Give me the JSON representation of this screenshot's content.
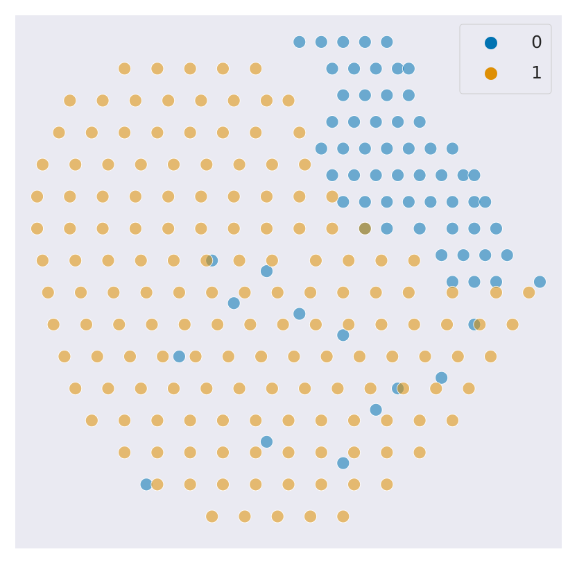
{
  "chart_data": {
    "type": "scatter",
    "xlim": [
      0,
      100
    ],
    "ylim": [
      0,
      100
    ],
    "legend": "upper right",
    "series": [
      {
        "name": "0",
        "color": "#0173b2",
        "x": [
          52,
          56,
          60,
          64,
          68,
          58,
          62,
          66,
          70,
          72,
          60,
          64,
          68,
          72,
          58,
          62,
          66,
          70,
          74,
          56,
          60,
          64,
          68,
          72,
          76,
          80,
          58,
          62,
          66,
          70,
          74,
          78,
          82,
          84,
          60,
          64,
          68,
          72,
          76,
          80,
          84,
          86,
          64,
          68,
          74,
          80,
          84,
          88,
          78,
          82,
          86,
          90,
          80,
          84,
          88,
          96,
          46,
          36,
          52,
          60,
          70,
          78,
          66,
          46,
          30,
          24,
          84,
          60,
          40
        ],
        "values": [
          95,
          95,
          95,
          95,
          95,
          90,
          90,
          90,
          90,
          90,
          85,
          85,
          85,
          85,
          80,
          80,
          80,
          80,
          80,
          75,
          75,
          75,
          75,
          75,
          75,
          75,
          70,
          70,
          70,
          70,
          70,
          70,
          70,
          70,
          65,
          65,
          65,
          65,
          65,
          65,
          65,
          65,
          60,
          60,
          60,
          60,
          60,
          60,
          55,
          55,
          55,
          55,
          50,
          50,
          50,
          50,
          52,
          54,
          44,
          40,
          30,
          32,
          26,
          20,
          36,
          12,
          42,
          16,
          46
        ]
      },
      {
        "name": "1",
        "color": "#de8f05",
        "x": [
          20,
          26,
          32,
          38,
          44,
          10,
          16,
          22,
          28,
          34,
          40,
          46,
          50,
          8,
          14,
          20,
          26,
          32,
          38,
          44,
          52,
          5,
          11,
          17,
          23,
          29,
          35,
          41,
          47,
          53,
          4,
          10,
          16,
          22,
          28,
          34,
          40,
          46,
          52,
          58,
          4,
          10,
          16,
          22,
          28,
          34,
          40,
          46,
          52,
          58,
          64,
          5,
          11,
          17,
          23,
          29,
          35,
          41,
          47,
          55,
          61,
          67,
          73,
          6,
          12,
          18,
          24,
          30,
          36,
          42,
          48,
          54,
          60,
          66,
          72,
          80,
          88,
          94,
          7,
          13,
          19,
          25,
          31,
          37,
          43,
          49,
          55,
          61,
          67,
          73,
          79,
          85,
          91,
          9,
          15,
          21,
          27,
          33,
          39,
          45,
          51,
          57,
          63,
          69,
          75,
          81,
          87,
          11,
          17,
          23,
          29,
          35,
          41,
          47,
          53,
          59,
          65,
          71,
          77,
          83,
          14,
          20,
          26,
          32,
          38,
          44,
          50,
          56,
          62,
          68,
          74,
          80,
          20,
          26,
          32,
          38,
          44,
          50,
          56,
          62,
          68,
          74,
          26,
          32,
          38,
          44,
          50,
          56,
          62,
          68,
          36,
          42,
          48,
          54,
          60
        ],
        "values": [
          90,
          90,
          90,
          90,
          90,
          84,
          84,
          84,
          84,
          84,
          84,
          84,
          84,
          78,
          78,
          78,
          78,
          78,
          78,
          78,
          78,
          72,
          72,
          72,
          72,
          72,
          72,
          72,
          72,
          72,
          66,
          66,
          66,
          66,
          66,
          66,
          66,
          66,
          66,
          66,
          60,
          60,
          60,
          60,
          60,
          60,
          60,
          60,
          60,
          60,
          60,
          54,
          54,
          54,
          54,
          54,
          54,
          54,
          54,
          54,
          54,
          54,
          54,
          48,
          48,
          48,
          48,
          48,
          48,
          48,
          48,
          48,
          48,
          48,
          48,
          48,
          48,
          48,
          42,
          42,
          42,
          42,
          42,
          42,
          42,
          42,
          42,
          42,
          42,
          42,
          42,
          42,
          42,
          36,
          36,
          36,
          36,
          36,
          36,
          36,
          36,
          36,
          36,
          36,
          36,
          36,
          36,
          30,
          30,
          30,
          30,
          30,
          30,
          30,
          30,
          30,
          30,
          30,
          30,
          30,
          24,
          24,
          24,
          24,
          24,
          24,
          24,
          24,
          24,
          24,
          24,
          24,
          18,
          18,
          18,
          18,
          18,
          18,
          18,
          18,
          18,
          18,
          12,
          12,
          12,
          12,
          12,
          12,
          12,
          12,
          6,
          6,
          6,
          6,
          6
        ]
      }
    ]
  }
}
